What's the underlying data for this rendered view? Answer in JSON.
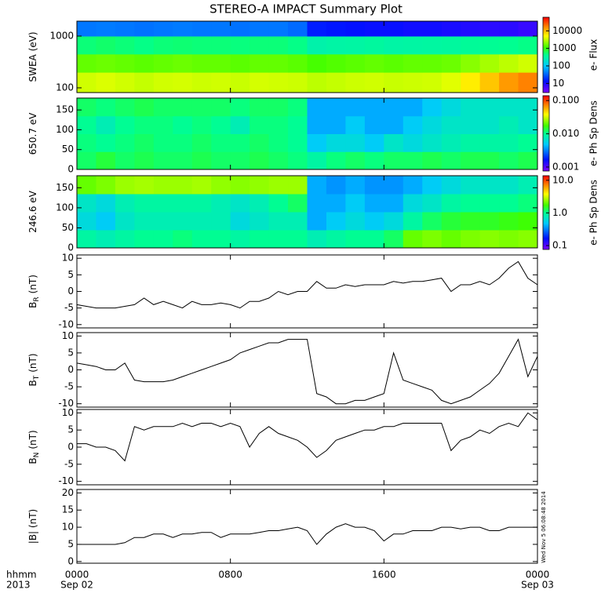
{
  "title": "STEREO-A IMPACT Summary Plot",
  "timestamp": "Wed Nov  5 06:08:48 2014",
  "x_axis": {
    "title": [
      "hhmm",
      "2013"
    ],
    "xlim": [
      0,
      24
    ],
    "xticks": [
      {
        "value": 0,
        "label": "0000"
      },
      {
        "value": 8,
        "label": "0800"
      },
      {
        "value": 16,
        "label": "1600"
      },
      {
        "value": 24,
        "label": "0000"
      }
    ],
    "xtick_dates": [
      "Sep 02",
      null,
      null,
      "Sep 03"
    ]
  },
  "x_bins": [
    0,
    1,
    2,
    3,
    4,
    5,
    6,
    7,
    8,
    9,
    10,
    11,
    12,
    13,
    14,
    15,
    16,
    17,
    18,
    19,
    20,
    21,
    22,
    23,
    24
  ],
  "x": [
    0,
    0.5,
    1,
    1.5,
    2,
    2.5,
    3,
    3.5,
    4,
    4.5,
    5,
    5.5,
    6,
    6.5,
    7,
    7.5,
    8,
    8.5,
    9,
    9.5,
    10,
    10.5,
    11,
    11.5,
    12,
    12.5,
    13,
    13.5,
    14,
    14.5,
    15,
    15.5,
    16,
    16.5,
    17,
    17.5,
    18,
    18.5,
    19,
    19.5,
    20,
    20.5,
    21,
    21.5,
    22,
    22.5,
    23,
    23.5,
    24
  ],
  "chart_data": [
    {
      "type": "heatmap",
      "ylabel": "SWEA (eV)",
      "ylog": true,
      "ylim": [
        81,
        1940
      ],
      "yticks": [
        100,
        1000
      ],
      "y_bins": [
        81,
        200,
        450,
        1000,
        1940
      ],
      "values": [
        [
          3500,
          3800,
          3500,
          3200,
          3500,
          3600,
          3400,
          3500,
          3300,
          3600,
          3500,
          3400,
          3000,
          3200,
          3400,
          3500,
          3300,
          3400,
          3500,
          4000,
          6000,
          9000,
          14000,
          18000
        ],
        [
          1500,
          1600,
          1500,
          1400,
          1500,
          1600,
          1500,
          1500,
          1400,
          1500,
          1500,
          1400,
          1200,
          1300,
          1400,
          1500,
          1400,
          1500,
          1500,
          1600,
          2000,
          2500,
          3000,
          3500
        ],
        [
          500,
          550,
          500,
          450,
          500,
          520,
          500,
          500,
          480,
          500,
          500,
          450,
          300,
          320,
          330,
          350,
          320,
          330,
          340,
          350,
          380,
          400,
          420,
          450
        ],
        [
          40,
          42,
          40,
          38,
          40,
          42,
          40,
          40,
          38,
          40,
          40,
          35,
          15,
          14,
          13,
          12,
          12,
          11,
          11,
          10,
          9,
          8,
          8,
          7
        ]
      ],
      "zlabel": "e- Flux",
      "zlog": true,
      "zlim": [
        3,
        60000
      ],
      "zticks": [
        10,
        100,
        1000,
        10000
      ]
    },
    {
      "type": "heatmap",
      "ylabel": "650.7 eV",
      "ylog": false,
      "ylim": [
        0,
        180
      ],
      "yticks": [
        0,
        50,
        100,
        150
      ],
      "y_bins": [
        0,
        45,
        90,
        135,
        180
      ],
      "values": [
        [
          0.012,
          0.014,
          0.012,
          0.013,
          0.012,
          0.012,
          0.013,
          0.012,
          0.012,
          0.013,
          0.012,
          0.011,
          0.009,
          0.011,
          0.012,
          0.011,
          0.012,
          0.012,
          0.013,
          0.012,
          0.013,
          0.013,
          0.012,
          0.013
        ],
        [
          0.011,
          0.01,
          0.011,
          0.012,
          0.011,
          0.011,
          0.012,
          0.011,
          0.011,
          0.012,
          0.011,
          0.01,
          0.005,
          0.006,
          0.006,
          0.005,
          0.007,
          0.006,
          0.007,
          0.008,
          0.009,
          0.009,
          0.009,
          0.01
        ],
        [
          0.01,
          0.008,
          0.01,
          0.011,
          0.011,
          0.01,
          0.011,
          0.01,
          0.008,
          0.011,
          0.011,
          0.01,
          0.004,
          0.004,
          0.005,
          0.004,
          0.004,
          0.005,
          0.006,
          0.007,
          0.007,
          0.007,
          0.008,
          0.007
        ],
        [
          0.012,
          0.011,
          0.012,
          0.013,
          0.012,
          0.012,
          0.012,
          0.012,
          0.011,
          0.012,
          0.012,
          0.011,
          0.004,
          0.004,
          0.004,
          0.004,
          0.004,
          0.004,
          0.005,
          0.006,
          0.007,
          0.007,
          0.007,
          0.007
        ]
      ],
      "zlabel": "e- Ph Sp Dens",
      "zlog": true,
      "zlim": [
        0.00076,
        0.14
      ],
      "zticks": [
        {
          "value": 0.001,
          "label": "0.001"
        },
        {
          "value": 0.01,
          "label": "0.010"
        },
        {
          "value": 0.1,
          "label": "0.100"
        }
      ]
    },
    {
      "type": "heatmap",
      "ylabel": "246.6 eV",
      "ylog": false,
      "ylim": [
        0,
        180
      ],
      "yticks": [
        0,
        50,
        100,
        150
      ],
      "y_bins": [
        0,
        45,
        90,
        135,
        180
      ],
      "values": [
        [
          0.9,
          0.8,
          0.9,
          1.0,
          1.0,
          1.1,
          1.0,
          1.0,
          0.9,
          1.0,
          1.0,
          1.0,
          0.8,
          0.9,
          1.0,
          1.0,
          1.2,
          2.0,
          2.2,
          2.0,
          2.2,
          2.3,
          2.2,
          2.3
        ],
        [
          0.6,
          0.5,
          0.7,
          0.8,
          0.8,
          0.8,
          0.8,
          0.8,
          0.6,
          0.7,
          0.8,
          0.8,
          0.4,
          0.5,
          0.6,
          0.5,
          0.6,
          0.9,
          1.2,
          1.4,
          1.5,
          1.5,
          1.6,
          1.7
        ],
        [
          0.7,
          0.6,
          0.8,
          0.9,
          0.9,
          0.9,
          0.9,
          0.8,
          0.7,
          0.8,
          1.0,
          1.2,
          0.4,
          0.4,
          0.5,
          0.4,
          0.4,
          0.6,
          0.7,
          0.9,
          1.0,
          1.0,
          1.0,
          1.1
        ],
        [
          2.0,
          2.2,
          2.5,
          2.6,
          2.5,
          2.5,
          2.6,
          2.4,
          2.3,
          2.4,
          2.5,
          2.5,
          0.4,
          0.35,
          0.4,
          0.35,
          0.35,
          0.4,
          0.5,
          0.6,
          0.7,
          0.7,
          0.7,
          0.8
        ]
      ],
      "zlabel": "e- Ph Sp Dens",
      "zlog": true,
      "zlim": [
        0.076,
        13.8
      ],
      "zticks": [
        {
          "value": 0.1,
          "label": "0.1"
        },
        {
          "value": 1,
          "label": "1.0"
        },
        {
          "value": 10,
          "label": "10.0"
        }
      ]
    },
    {
      "type": "line",
      "ylabel": "B",
      "ylabel_sub": "R",
      "ylabel_unit": "(nT)",
      "ylim": [
        -11,
        11
      ],
      "yticks": [
        -10,
        -5,
        0,
        5,
        10
      ],
      "color": "#000000",
      "values": [
        -4,
        -4.5,
        -5,
        -5,
        -5,
        -4.5,
        -4,
        -2,
        -4,
        -3,
        -4,
        -5,
        -3,
        -4,
        -4,
        -3.5,
        -4,
        -5,
        -3,
        -3,
        -2,
        0,
        -1,
        0,
        0,
        3,
        1,
        1,
        2,
        1.5,
        2,
        2,
        2,
        3,
        2.5,
        3,
        3,
        3.5,
        4,
        0,
        2,
        2,
        3,
        2,
        4,
        7,
        9,
        4,
        2
      ]
    },
    {
      "type": "line",
      "ylabel": "B",
      "ylabel_sub": "T",
      "ylabel_unit": "(nT)",
      "ylim": [
        -11,
        11
      ],
      "yticks": [
        -10,
        -5,
        0,
        5,
        10
      ],
      "color": "#000000",
      "values": [
        2,
        1.5,
        1,
        0,
        0,
        2,
        -3,
        -3.5,
        -3.5,
        -3.5,
        -3,
        -2,
        -1,
        0,
        1,
        2,
        3,
        5,
        6,
        7,
        8,
        8,
        9,
        9,
        9,
        -7,
        -8,
        -10,
        -10,
        -9,
        -9,
        -8,
        -7,
        5,
        -3,
        -4,
        -5,
        -6,
        -9,
        -10,
        -9,
        -8,
        -6,
        -4,
        -1,
        4,
        9,
        -2,
        4
      ]
    },
    {
      "type": "line",
      "ylabel": "B",
      "ylabel_sub": "N",
      "ylabel_unit": "(nT)",
      "ylim": [
        -11,
        11
      ],
      "yticks": [
        -10,
        -5,
        0,
        5,
        10
      ],
      "color": "#000000",
      "values": [
        1,
        1,
        0,
        0,
        -1,
        -4,
        6,
        5,
        6,
        6,
        6,
        7,
        6,
        7,
        7,
        6,
        7,
        6,
        0,
        4,
        6,
        4,
        3,
        2,
        0,
        -3,
        -1,
        2,
        3,
        4,
        5,
        5,
        6,
        6,
        7,
        7,
        7,
        7,
        7,
        -1,
        2,
        3,
        5,
        4,
        6,
        7,
        6,
        10,
        8
      ]
    },
    {
      "type": "line",
      "ylabel": "|B| (nT)",
      "ylim": [
        -0.5,
        21
      ],
      "yticks": [
        0,
        5,
        10,
        15,
        20
      ],
      "color": "#000000",
      "values": [
        5,
        5,
        5,
        5,
        5,
        5.5,
        7,
        7,
        8,
        8,
        7,
        8,
        8,
        8.5,
        8.5,
        7,
        8,
        8,
        8,
        8.5,
        9,
        9,
        9.5,
        10,
        9,
        5,
        8,
        10,
        11,
        10,
        10,
        9,
        6,
        8,
        8,
        9,
        9,
        9,
        10,
        10,
        9.5,
        10,
        10,
        9,
        9,
        10,
        10,
        10,
        10
      ]
    }
  ]
}
